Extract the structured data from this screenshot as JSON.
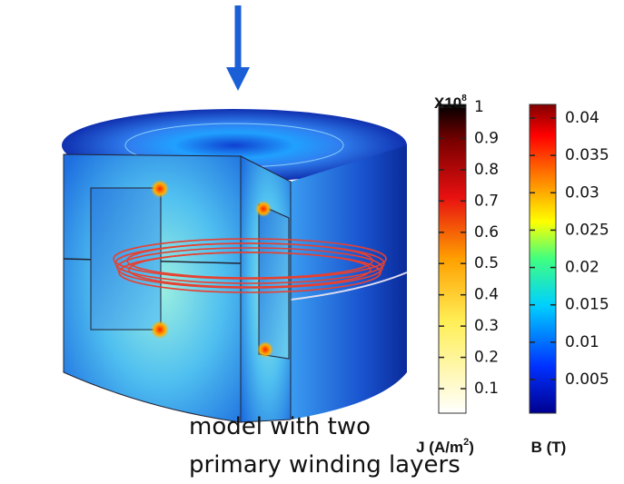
{
  "colorbars": [
    {
      "multiplier": "X10",
      "multiplier_exp": "8",
      "ticks": [
        1,
        0.9,
        0.8,
        0.7,
        0.6,
        0.5,
        0.4,
        0.3,
        0.2,
        0.1
      ],
      "label_main": "J (A/m",
      "label_sup": "2",
      "label_end": ")"
    },
    {
      "ticks": [
        0.04,
        0.035,
        0.03,
        0.025,
        0.02,
        0.015,
        0.01,
        0.005
      ],
      "label": "B (T)"
    }
  ],
  "caption": [
    "model with two",
    "primary winding layers"
  ]
}
